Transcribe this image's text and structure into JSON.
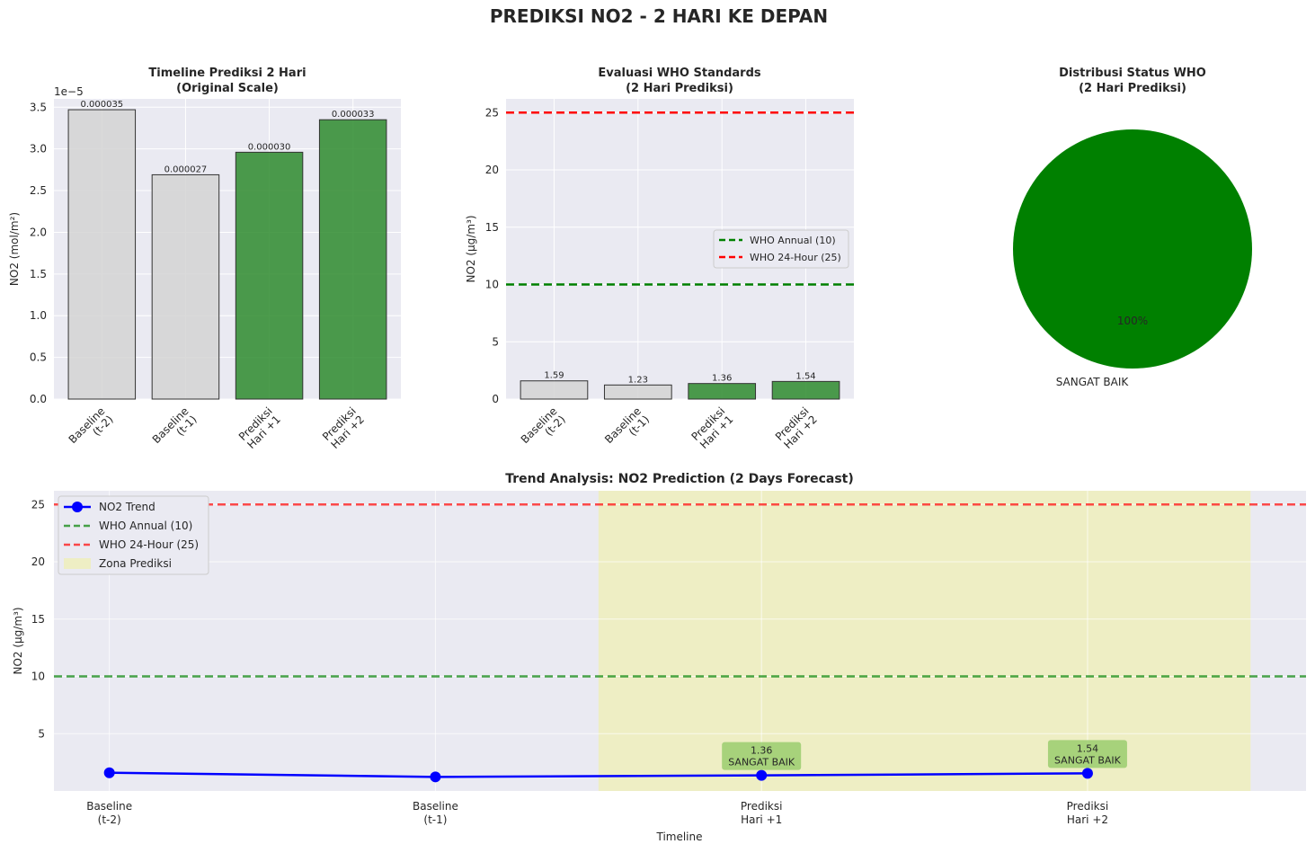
{
  "title": "PREDIKSI NO2 - 2 HARI KE DEPAN",
  "colors": {
    "axes_bg": "#eaeaf2",
    "grid": "#ffffff",
    "baseline_bar": "#d3d3d3",
    "prediction_bar": "#2e8b2e",
    "who_annual": "#008000",
    "who_24h": "#ff0000",
    "trend_line": "#0000ff",
    "prediction_zone": "#eeeec4",
    "annotation_box": "#9acd6f"
  },
  "chart_data": [
    {
      "type": "bar",
      "title": "Timeline Prediksi 2 Hari",
      "subtitle": "(Original Scale)",
      "ylabel": "NO2 (mol/m²)",
      "yscale_label": "1e−5",
      "categories": [
        [
          "Baseline",
          "(t-2)"
        ],
        [
          "Baseline",
          "(t-1)"
        ],
        [
          "Prediksi",
          "Hari +1"
        ],
        [
          "Prediksi",
          "Hari +2"
        ]
      ],
      "values": [
        3.47e-05,
        2.69e-05,
        2.96e-05,
        3.35e-05
      ],
      "value_labels": [
        "0.000035",
        "0.000027",
        "0.000030",
        "0.000033"
      ],
      "kinds": [
        "baseline",
        "baseline",
        "prediction",
        "prediction"
      ],
      "ylim": [
        0,
        3.6e-05
      ],
      "yticks": [
        0,
        5e-06,
        1e-05,
        1.5e-05,
        2e-05,
        2.5e-05,
        3e-05,
        3.5e-05
      ],
      "ytick_labels": [
        "0.0",
        "0.5",
        "1.0",
        "1.5",
        "2.0",
        "2.5",
        "3.0",
        "3.5"
      ],
      "grid": true
    },
    {
      "type": "bar",
      "title": "Evaluasi WHO Standards",
      "subtitle": "(2 Hari Prediksi)",
      "ylabel": "NO2 (μg/m³)",
      "categories": [
        [
          "Baseline",
          "(t-2)"
        ],
        [
          "Baseline",
          "(t-1)"
        ],
        [
          "Prediksi",
          "Hari +1"
        ],
        [
          "Prediksi",
          "Hari +2"
        ]
      ],
      "values": [
        1.59,
        1.23,
        1.36,
        1.54
      ],
      "value_labels": [
        "1.59",
        "1.23",
        "1.36",
        "1.54"
      ],
      "kinds": [
        "baseline",
        "baseline",
        "prediction",
        "prediction"
      ],
      "ylim": [
        0,
        26.2
      ],
      "yticks": [
        0,
        5,
        10,
        15,
        20,
        25
      ],
      "ytick_labels": [
        "0",
        "5",
        "10",
        "15",
        "20",
        "25"
      ],
      "hlines": [
        {
          "label": "WHO Annual (10)",
          "y": 10,
          "color_key": "who_annual"
        },
        {
          "label": "WHO 24-Hour (25)",
          "y": 25,
          "color_key": "who_24h"
        }
      ],
      "legend_position": "center-right",
      "grid": true
    },
    {
      "type": "pie",
      "title": "Distribusi Status WHO",
      "subtitle": "(2 Hari Prediksi)",
      "labels": [
        "SANGAT BAIK"
      ],
      "values": [
        100
      ],
      "pct_labels": [
        "100%"
      ]
    },
    {
      "type": "line",
      "title": "Trend Analysis: NO2 Prediction (2 Days Forecast)",
      "xlabel": "Timeline",
      "ylabel": "NO2 (μg/m³)",
      "categories": [
        [
          "Baseline",
          "(t-2)"
        ],
        [
          "Baseline",
          "(t-1)"
        ],
        [
          "Prediksi",
          "Hari +1"
        ],
        [
          "Prediksi",
          "Hari +2"
        ]
      ],
      "series": [
        {
          "name": "NO2 Trend",
          "values": [
            1.59,
            1.23,
            1.36,
            1.54
          ]
        }
      ],
      "hlines": [
        {
          "label": "WHO Annual (10)",
          "y": 10,
          "color_key": "who_annual"
        },
        {
          "label": "WHO 24-Hour (25)",
          "y": 25,
          "color_key": "who_24h"
        }
      ],
      "zone": {
        "label": "Zona Prediksi",
        "from": 1.5,
        "to": 3.5
      },
      "annotations": [
        {
          "index": 2,
          "lines": [
            "1.36",
            "SANGAT BAIK"
          ]
        },
        {
          "index": 3,
          "lines": [
            "1.54",
            "SANGAT BAIK"
          ]
        }
      ],
      "xlim": [
        -0.17,
        3.67
      ],
      "ylim": [
        0,
        26.2
      ],
      "yticks": [
        5,
        10,
        15,
        20,
        25
      ],
      "ytick_labels": [
        "5",
        "10",
        "15",
        "20",
        "25"
      ],
      "legend_position": "upper-left",
      "grid": true
    }
  ]
}
